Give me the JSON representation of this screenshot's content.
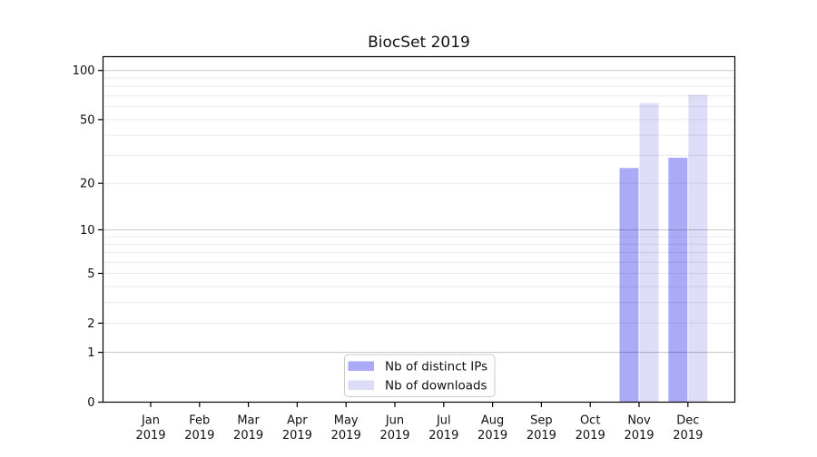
{
  "chart_data": {
    "type": "bar",
    "title": "BiocSet 2019",
    "months": [
      "Jan",
      "Feb",
      "Mar",
      "Apr",
      "May",
      "Jun",
      "Jul",
      "Aug",
      "Sep",
      "Oct",
      "Nov",
      "Dec"
    ],
    "year": "2019",
    "series": [
      {
        "name": "Nb of distinct IPs",
        "color": "#abaaf6",
        "values": [
          0,
          0,
          0,
          0,
          0,
          0,
          0,
          0,
          0,
          0,
          25,
          29
        ]
      },
      {
        "name": "Nb of downloads",
        "color": "#ddddf8",
        "values": [
          0,
          0,
          0,
          0,
          0,
          0,
          0,
          0,
          0,
          0,
          63,
          71
        ]
      }
    ],
    "y_axis": {
      "scale": "log10(value+1)",
      "tick_values": [
        0,
        1,
        2,
        5,
        10,
        20,
        50,
        100
      ],
      "major_gridlines": [
        1,
        10,
        100
      ],
      "minor_gridlines": [
        2,
        3,
        4,
        5,
        6,
        7,
        8,
        9,
        20,
        30,
        40,
        50,
        60,
        70,
        80,
        90
      ],
      "range": [
        0,
        118
      ]
    },
    "grid": "horizontal",
    "legend": {
      "position": "bottom-center",
      "entries": [
        "Nb of distinct IPs",
        "Nb of downloads"
      ]
    },
    "colors": {
      "bar_distinct_ips": "#abaaf6",
      "bar_downloads": "#ddddf8",
      "axis": "#000000",
      "text": "#111111",
      "legend_border": "#cccccc",
      "legend_fill": "#ffffff"
    }
  }
}
